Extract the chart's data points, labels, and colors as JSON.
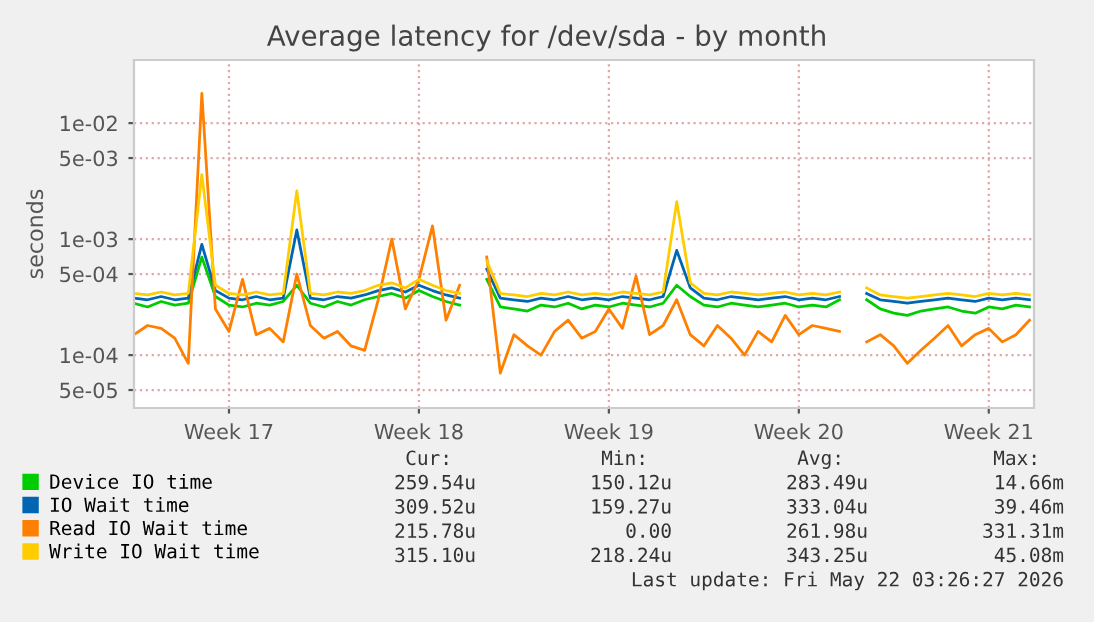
{
  "chart_data": {
    "type": "line",
    "title": "Average latency for /dev/sda - by month",
    "ylabel": "seconds",
    "x": [
      "2026-04-20T00:00",
      "2026-04-20T12:00",
      "2026-04-21T00:00",
      "2026-04-21T12:00",
      "2026-04-22T00:00",
      "2026-04-22T12:00",
      "2026-04-23T00:00",
      "2026-04-23T12:00",
      "2026-04-24T00:00",
      "2026-04-24T12:00",
      "2026-04-25T00:00",
      "2026-04-25T12:00",
      "2026-04-26T00:00",
      "2026-04-26T12:00",
      "2026-04-27T00:00",
      "2026-04-27T12:00",
      "2026-04-28T00:00",
      "2026-04-28T12:00",
      "2026-04-29T00:00",
      "2026-04-29T12:00",
      "2026-04-30T00:00",
      "2026-04-30T12:00",
      "2026-05-01T00:00",
      "2026-05-01T12:00",
      "2026-05-02T00:00",
      "2026-05-02T12:00",
      "2026-05-03T00:00",
      "2026-05-03T12:00",
      "2026-05-04T00:00",
      "2026-05-04T12:00",
      "2026-05-05T00:00",
      "2026-05-05T12:00",
      "2026-05-06T00:00",
      "2026-05-06T12:00",
      "2026-05-07T00:00",
      "2026-05-07T12:00",
      "2026-05-08T00:00",
      "2026-05-08T12:00",
      "2026-05-09T00:00",
      "2026-05-09T12:00",
      "2026-05-10T00:00",
      "2026-05-10T12:00",
      "2026-05-11T00:00",
      "2026-05-11T12:00",
      "2026-05-12T00:00",
      "2026-05-12T12:00",
      "2026-05-13T00:00",
      "2026-05-13T12:00",
      "2026-05-14T00:00",
      "2026-05-14T12:00",
      "2026-05-15T00:00",
      "2026-05-15T12:00",
      "2026-05-16T00:00",
      "2026-05-16T12:00",
      "2026-05-17T00:00",
      "2026-05-17T12:00",
      "2026-05-18T00:00",
      "2026-05-18T12:00",
      "2026-05-19T00:00",
      "2026-05-19T12:00",
      "2026-05-20T00:00",
      "2026-05-20T12:00",
      "2026-05-21T00:00",
      "2026-05-21T12:00",
      "2026-05-22T00:00",
      "2026-05-22T12:00",
      "2026-05-23T00:00"
    ],
    "series": [
      {
        "name": "Device IO time",
        "color": "#00cc00",
        "values": [
          0.00028,
          0.00026,
          0.00029,
          0.00027,
          0.00028,
          0.0007,
          0.00032,
          0.00027,
          0.00026,
          0.00028,
          0.00027,
          0.00029,
          0.0004,
          0.00028,
          0.00026,
          0.00029,
          0.00027,
          0.0003,
          0.00032,
          0.00034,
          0.00031,
          0.00036,
          0.00032,
          0.00029,
          0.00027,
          null,
          0.00045,
          0.00026,
          0.00025,
          0.00024,
          0.00027,
          0.00026,
          0.00028,
          0.00025,
          0.00027,
          0.00026,
          0.00028,
          0.00027,
          0.00026,
          0.00028,
          0.0004,
          0.00032,
          0.00027,
          0.00026,
          0.00028,
          0.00027,
          0.00026,
          0.00027,
          0.00028,
          0.00026,
          0.00027,
          0.00026,
          0.0003,
          null,
          0.0003,
          0.00025,
          0.00023,
          0.00022,
          0.00024,
          0.00025,
          0.00026,
          0.00024,
          0.00023,
          0.00026,
          0.00025,
          0.00027,
          0.00026
        ]
      },
      {
        "name": "IO Wait time",
        "color": "#0066b3",
        "values": [
          0.00031,
          0.0003,
          0.00032,
          0.0003,
          0.00031,
          0.0009,
          0.00036,
          0.00031,
          0.0003,
          0.00032,
          0.0003,
          0.00031,
          0.0012,
          0.00031,
          0.0003,
          0.00032,
          0.00031,
          0.00033,
          0.00036,
          0.00038,
          0.00035,
          0.0004,
          0.00036,
          0.00033,
          0.00031,
          null,
          0.00055,
          0.00031,
          0.0003,
          0.00029,
          0.00031,
          0.0003,
          0.00032,
          0.0003,
          0.00031,
          0.0003,
          0.00032,
          0.00031,
          0.0003,
          0.00032,
          0.0008,
          0.00038,
          0.00031,
          0.0003,
          0.00032,
          0.00031,
          0.0003,
          0.00031,
          0.00032,
          0.0003,
          0.00031,
          0.0003,
          0.00032,
          null,
          0.00034,
          0.0003,
          0.00029,
          0.00028,
          0.00029,
          0.0003,
          0.00031,
          0.0003,
          0.00029,
          0.00031,
          0.0003,
          0.00031,
          0.0003
        ]
      },
      {
        "name": "Read IO Wait time",
        "color": "#ff8000",
        "values": [
          0.00015,
          0.00018,
          0.00017,
          0.00014,
          8.5e-05,
          0.018,
          0.00025,
          0.00016,
          0.00045,
          0.00015,
          0.00017,
          0.00013,
          0.0005,
          0.00018,
          0.00014,
          0.00016,
          0.00012,
          0.00011,
          0.0003,
          0.001,
          0.00025,
          0.00045,
          0.0013,
          0.0002,
          0.0004,
          null,
          0.0007,
          7e-05,
          0.00015,
          0.00012,
          0.0001,
          0.00016,
          0.0002,
          0.00014,
          0.00016,
          0.00025,
          0.00017,
          0.00048,
          0.00015,
          0.00018,
          0.0003,
          0.00015,
          0.00012,
          0.00018,
          0.00014,
          0.0001,
          0.00016,
          0.00013,
          0.00022,
          0.00015,
          0.00018,
          0.00017,
          0.00016,
          null,
          0.00013,
          0.00015,
          0.00012,
          8.5e-05,
          0.00011,
          0.00014,
          0.00018,
          0.00012,
          0.00015,
          0.00017,
          0.00013,
          0.00015,
          0.0002
        ]
      },
      {
        "name": "Write IO Wait time",
        "color": "#ffcc00",
        "values": [
          0.00034,
          0.00033,
          0.00035,
          0.00033,
          0.00034,
          0.0036,
          0.0004,
          0.00034,
          0.00033,
          0.00035,
          0.00033,
          0.00034,
          0.0026,
          0.00034,
          0.00033,
          0.00035,
          0.00034,
          0.00036,
          0.0004,
          0.00042,
          0.00038,
          0.00045,
          0.0004,
          0.00036,
          0.00034,
          null,
          0.00065,
          0.00034,
          0.00033,
          0.00032,
          0.00034,
          0.00033,
          0.00035,
          0.00033,
          0.00034,
          0.00033,
          0.00035,
          0.00034,
          0.00033,
          0.00035,
          0.0021,
          0.00042,
          0.00034,
          0.00033,
          0.00035,
          0.00034,
          0.00033,
          0.00034,
          0.00035,
          0.00033,
          0.00034,
          0.00033,
          0.00035,
          null,
          0.00038,
          0.00033,
          0.00032,
          0.00031,
          0.00032,
          0.00033,
          0.00034,
          0.00033,
          0.00032,
          0.00034,
          0.00033,
          0.00034,
          0.00033
        ]
      }
    ],
    "log": "y",
    "xlim": [
      "2026-04-20T00:00",
      "2026-05-23T04:00"
    ],
    "ylim": [
      3.5e-05,
      0.035
    ],
    "xticks": [
      {
        "value": "2026-04-23T12:00",
        "label": "Week 17"
      },
      {
        "value": "2026-04-30T12:00",
        "label": "Week 18"
      },
      {
        "value": "2026-05-07T12:00",
        "label": "Week 19"
      },
      {
        "value": "2026-05-14T12:00",
        "label": "Week 20"
      },
      {
        "value": "2026-05-21T12:00",
        "label": "Week 21"
      }
    ],
    "yticks": [
      {
        "value": 5e-05,
        "label": "5e-05"
      },
      {
        "value": 0.0001,
        "label": "1e-04"
      },
      {
        "value": 0.0005,
        "label": "5e-04"
      },
      {
        "value": 0.001,
        "label": "1e-03"
      },
      {
        "value": 0.005,
        "label": "5e-03"
      },
      {
        "value": 0.01,
        "label": "1e-02"
      }
    ],
    "grid": true,
    "legend": "bottom",
    "marker": "none",
    "line_style": "solid",
    "annotations": [
      "Cur:",
      "Min:",
      "Avg:",
      "Max:",
      "259.54u",
      "150.12u",
      "283.49u",
      "14.66m",
      "309.52u",
      "159.27u",
      "333.04u",
      "39.46m",
      "215.78u",
      "0.00",
      "261.98u",
      "331.31m",
      "315.10u",
      "218.24u",
      "343.25u",
      "45.08m",
      "Last update: Fri May 22 03:26:27 2026"
    ]
  }
}
